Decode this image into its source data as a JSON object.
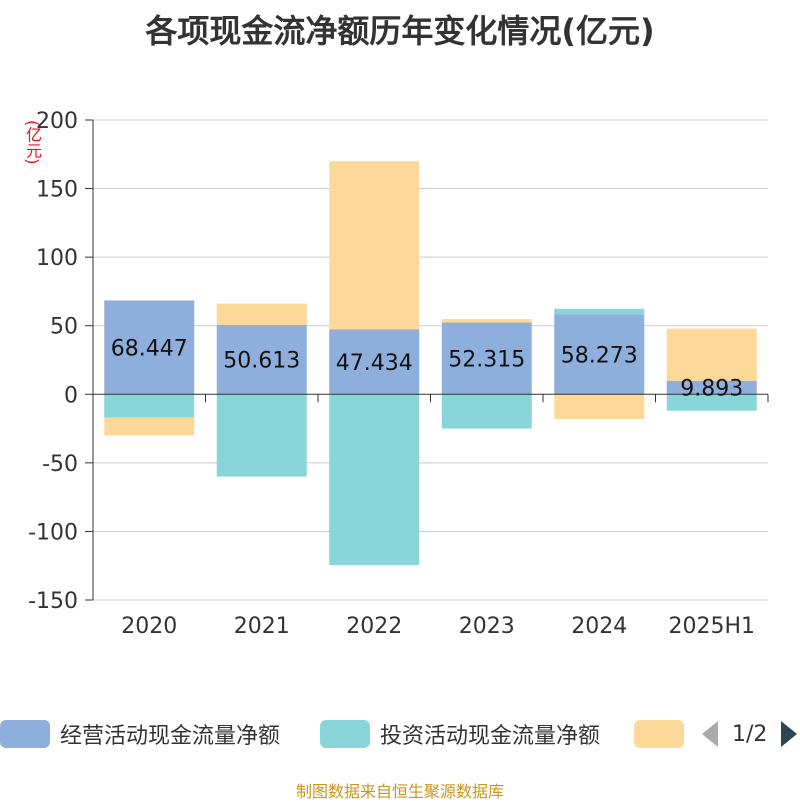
{
  "title": "各项现金流净额历年变化情况(亿元)",
  "unit_label": "(亿元)",
  "footer": "制图数据来自恒生聚源数据库",
  "legend": {
    "items": [
      {
        "label": "经营活动现金流量净额",
        "color": "#8eaedb"
      },
      {
        "label": "投资活动现金流量净额",
        "color": "#88d6d9"
      },
      {
        "label": "",
        "color": "#fed898"
      }
    ],
    "pager": "1/2",
    "prev_icon": "triangle-left-icon",
    "next_icon": "triangle-right-icon"
  },
  "chart_data": {
    "type": "bar",
    "stacked": true,
    "title": "各项现金流净额历年变化情况(亿元)",
    "ylabel": "(亿元)",
    "categories": [
      "2020",
      "2021",
      "2022",
      "2023",
      "2024",
      "2025H1"
    ],
    "ylim": [
      -150,
      200
    ],
    "yticks": [
      200,
      150,
      100,
      50,
      0,
      -50,
      -100,
      -150
    ],
    "series": [
      {
        "name": "经营活动现金流量净额",
        "color": "#8eaedb",
        "values": [
          68.447,
          50.613,
          47.434,
          52.315,
          58.273,
          9.893
        ],
        "labels": [
          "68.447",
          "50.613",
          "47.434",
          "52.315",
          "58.273",
          "9.893"
        ]
      },
      {
        "name": "投资活动现金流量净额",
        "color": "#88d6d9",
        "values": [
          -17,
          -60,
          -124.5,
          -25,
          4,
          -12
        ]
      },
      {
        "name": "",
        "color": "#fed898",
        "values": [
          -13,
          15.5,
          122.5,
          2.5,
          -18,
          38
        ]
      }
    ]
  }
}
